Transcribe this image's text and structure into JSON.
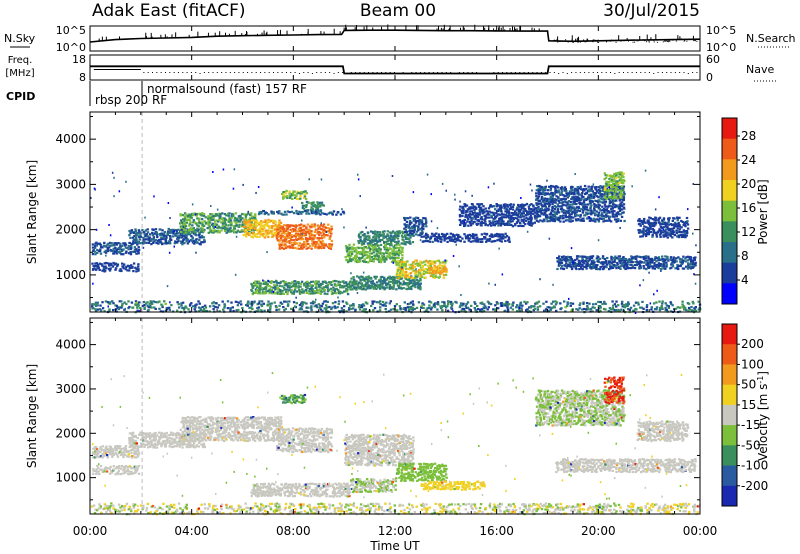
{
  "header": {
    "station": "Adak East (fitACF)",
    "beam": "Beam 00",
    "date": "30/Jul/2015"
  },
  "chart_data": [
    {
      "type": "line",
      "panel": "noise",
      "left_label": "N.Sky",
      "right_label": "N.Search",
      "left_ticks": [
        "10^5",
        "10^0"
      ],
      "right_ticks": [
        "10^5",
        "10^0"
      ],
      "series": [
        {
          "x": [
            0,
            1,
            2,
            3,
            4,
            5,
            6,
            7,
            8,
            9,
            9.9,
            10,
            11,
            12,
            13,
            14,
            15,
            16,
            17,
            18,
            18.05,
            19,
            20,
            21,
            22,
            23,
            24
          ],
          "values": [
            0.35,
            0.45,
            0.5,
            0.52,
            0.55,
            0.6,
            0.62,
            0.64,
            0.65,
            0.67,
            0.68,
            0.85,
            0.86,
            0.86,
            0.85,
            0.84,
            0.84,
            0.83,
            0.82,
            0.82,
            0.4,
            0.38,
            0.4,
            0.42,
            0.44,
            0.45,
            0.47
          ]
        }
      ]
    },
    {
      "type": "line",
      "panel": "frequency",
      "left_label": "Freq.",
      "left_unit": "[MHz]",
      "right_label": "Nave",
      "left_ticks": [
        "18",
        "8"
      ],
      "right_ticks": [
        "60",
        "0"
      ],
      "series": [
        {
          "x": [
            0,
            9.95,
            10,
            18,
            18.05,
            24
          ],
          "values": [
            13.5,
            13.5,
            10.4,
            10.4,
            13.5,
            13.5
          ]
        }
      ]
    },
    {
      "type": "table",
      "panel": "cpid",
      "label": "CPID",
      "entries": [
        {
          "start": 0,
          "text": "rbsp 200 RF"
        },
        {
          "start": 2.05,
          "text": "normalsound (fast) 157 RF"
        }
      ]
    },
    {
      "type": "heatmap",
      "panel": "power",
      "ylabel": "Slant Range [km]",
      "yticks": [
        1000,
        2000,
        3000,
        4000
      ],
      "ylim": [
        180,
        4600
      ],
      "xlim": [
        0,
        24
      ],
      "colorbar_label": "Power [dB]",
      "colorbar_ticks": [
        4,
        8,
        12,
        16,
        20,
        24,
        28
      ],
      "colorbar_range": [
        0,
        31
      ],
      "colors": [
        "#0000ff",
        "#1a3d9c",
        "#2a6f8a",
        "#3a8f5c",
        "#7bbf3a",
        "#f0d020",
        "#f29a1e",
        "#ee5a18",
        "#e61a10"
      ],
      "regions": [
        {
          "t0": 0.05,
          "t1": 1.9,
          "r0": 1480,
          "r1": 1750,
          "v0": 5,
          "v1": 8
        },
        {
          "t0": 0.05,
          "t1": 1.9,
          "r0": 1100,
          "r1": 1300,
          "v0": 4,
          "v1": 7
        },
        {
          "t0": 1.5,
          "t1": 4.5,
          "r0": 1700,
          "r1": 2050,
          "v0": 5,
          "v1": 9
        },
        {
          "t0": 3.5,
          "t1": 6.5,
          "r0": 1950,
          "r1": 2400,
          "v0": 9,
          "v1": 16
        },
        {
          "t0": 6.0,
          "t1": 7.5,
          "r0": 1850,
          "r1": 2250,
          "v0": 18,
          "v1": 23
        },
        {
          "t0": 7.3,
          "t1": 9.5,
          "r0": 1600,
          "r1": 2150,
          "v0": 22,
          "v1": 27
        },
        {
          "t0": 7.5,
          "t1": 8.5,
          "r0": 2700,
          "r1": 2900,
          "v0": 12,
          "v1": 18
        },
        {
          "t0": 8.3,
          "t1": 9.2,
          "r0": 2450,
          "r1": 2650,
          "v0": 9,
          "v1": 14
        },
        {
          "t0": 6.5,
          "t1": 10,
          "r0": 2350,
          "r1": 2450,
          "v0": 6,
          "v1": 10
        },
        {
          "t0": 10,
          "t1": 12.3,
          "r0": 1300,
          "r1": 1700,
          "v0": 12,
          "v1": 17
        },
        {
          "t0": 10.5,
          "t1": 12.7,
          "r0": 1700,
          "r1": 2000,
          "v0": 8,
          "v1": 13
        },
        {
          "t0": 12.3,
          "t1": 13.2,
          "r0": 1900,
          "r1": 2300,
          "v0": 5,
          "v1": 8
        },
        {
          "t0": 6.3,
          "t1": 10.2,
          "r0": 600,
          "r1": 900,
          "v0": 9,
          "v1": 15
        },
        {
          "t0": 10.2,
          "t1": 13,
          "r0": 700,
          "r1": 1000,
          "v0": 8,
          "v1": 13
        },
        {
          "t0": 12,
          "t1": 14,
          "r0": 950,
          "r1": 1350,
          "v0": 14,
          "v1": 22
        },
        {
          "t0": 13.3,
          "t1": 14,
          "r0": 1050,
          "r1": 1200,
          "v0": 20,
          "v1": 24
        },
        {
          "t0": 13,
          "t1": 16.5,
          "r0": 1750,
          "r1": 1950,
          "v0": 4,
          "v1": 7
        },
        {
          "t0": 18.3,
          "t1": 23.8,
          "r0": 1150,
          "r1": 1450,
          "v0": 4,
          "v1": 8
        },
        {
          "t0": 14.5,
          "t1": 17.5,
          "r0": 2100,
          "r1": 2600,
          "v0": 4,
          "v1": 7
        },
        {
          "t0": 17.5,
          "t1": 21,
          "r0": 2200,
          "r1": 3000,
          "v0": 4,
          "v1": 8
        },
        {
          "t0": 20.2,
          "t1": 21.0,
          "r0": 2700,
          "r1": 3300,
          "v0": 12,
          "v1": 18
        },
        {
          "t0": 21.5,
          "t1": 23.5,
          "r0": 1850,
          "r1": 2300,
          "v0": 4,
          "v1": 7
        },
        {
          "t0": 0,
          "t1": 24,
          "r0": 200,
          "r1": 450,
          "v0": 4,
          "v1": 14
        }
      ]
    },
    {
      "type": "heatmap",
      "panel": "velocity",
      "ylabel": "Slant Range [km]",
      "yticks": [
        1000,
        2000,
        3000,
        4000
      ],
      "ylim": [
        180,
        4600
      ],
      "xlim": [
        0,
        24
      ],
      "xlabel": "Time UT",
      "xticks": [
        "00:00",
        "04:00",
        "08:00",
        "12:00",
        "16:00",
        "20:00",
        "00:00"
      ],
      "colorbar_label": "Velocity [m s^-1]",
      "colorbar_label_main": "Velocity [m s",
      "colorbar_label_exp": "-1",
      "colorbar_label_close": "]",
      "colorbar_ticks": [
        "200",
        "100",
        "50",
        "15",
        "-15",
        "-50",
        "-100",
        "-200"
      ],
      "colors": [
        "#e61a10",
        "#ee5a18",
        "#f29a1e",
        "#f0d020",
        "#c8c8c0",
        "#7bbf3a",
        "#3a8f5c",
        "#2a5aa0",
        "#1a2ab0"
      ],
      "regions": [
        {
          "t0": 0.05,
          "t1": 1.9,
          "r0": 1480,
          "r1": 1750,
          "v0": 4,
          "v1": 4
        },
        {
          "t0": 0.05,
          "t1": 1.9,
          "r0": 1100,
          "r1": 1300,
          "v0": 4,
          "v1": 4
        },
        {
          "t0": 1.5,
          "t1": 4.5,
          "r0": 1700,
          "r1": 2050,
          "v0": 4,
          "v1": 4
        },
        {
          "t0": 3.5,
          "t1": 7.5,
          "r0": 1850,
          "r1": 2400,
          "v0": 4,
          "v1": 4
        },
        {
          "t0": 7.3,
          "t1": 9.5,
          "r0": 1600,
          "r1": 2150,
          "v0": 4,
          "v1": 4
        },
        {
          "t0": 7.5,
          "t1": 8.5,
          "r0": 2700,
          "r1": 2900,
          "v0": 5,
          "v1": 6
        },
        {
          "t0": 10,
          "t1": 12.7,
          "r0": 1300,
          "r1": 2000,
          "v0": 4,
          "v1": 4
        },
        {
          "t0": 6.3,
          "t1": 10.2,
          "r0": 600,
          "r1": 900,
          "v0": 4,
          "v1": 4
        },
        {
          "t0": 10.2,
          "t1": 12,
          "r0": 700,
          "r1": 1000,
          "v0": 4,
          "v1": 5
        },
        {
          "t0": 12,
          "t1": 14,
          "r0": 950,
          "r1": 1350,
          "v0": 5,
          "v1": 5
        },
        {
          "t0": 13,
          "t1": 15.5,
          "r0": 750,
          "r1": 950,
          "v0": 3,
          "v1": 3
        },
        {
          "t0": 18.3,
          "t1": 23.8,
          "r0": 1150,
          "r1": 1450,
          "v0": 4,
          "v1": 4
        },
        {
          "t0": 17.5,
          "t1": 21,
          "r0": 2200,
          "r1": 3000,
          "v0": 4,
          "v1": 5
        },
        {
          "t0": 20.2,
          "t1": 21.0,
          "r0": 2700,
          "r1": 3300,
          "v0": 0,
          "v1": 1
        },
        {
          "t0": 21.5,
          "t1": 23.5,
          "r0": 1850,
          "r1": 2300,
          "v0": 4,
          "v1": 4
        },
        {
          "t0": 0,
          "t1": 24,
          "r0": 200,
          "r1": 450,
          "v0": 3,
          "v1": 5
        }
      ]
    }
  ]
}
